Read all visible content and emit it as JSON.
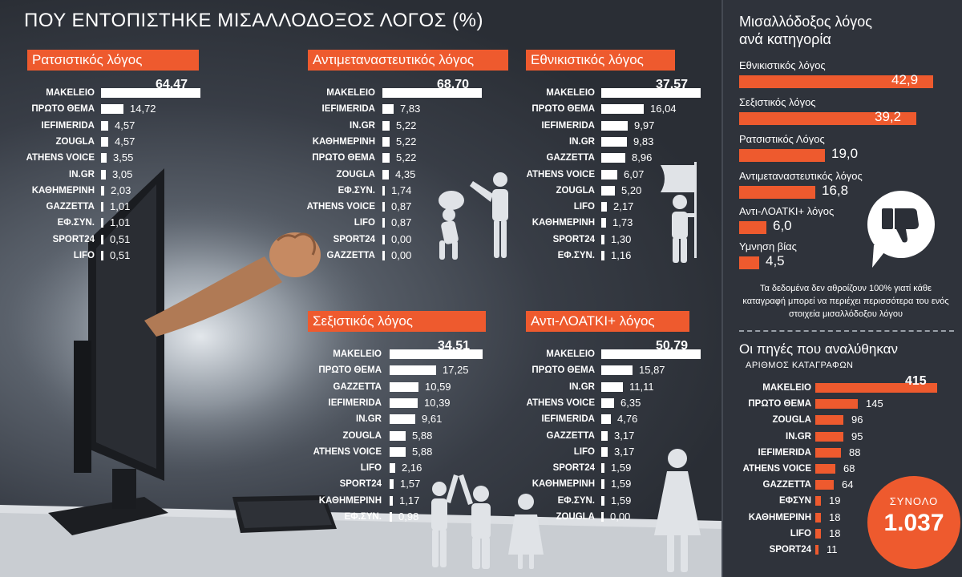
{
  "title": "ΠΟΥ ΕΝΤΟΠΙΣΤΗΚΕ ΜΙΣΑΛΛΟΔΟΞΟΣ ΛΟΓΟΣ (%)",
  "colors": {
    "accent": "#ee5a2e",
    "background": "#2b2f37",
    "bar_white": "#ffffff",
    "text": "#ffffff"
  },
  "right_panel": {
    "title_line1": "Μισαλλόδοξος λόγος",
    "title_line2": "ανά κατηγορία",
    "note": "Τα δεδομένα δεν αθροίζουν 100% γιατί κάθε καταγραφή μπορεί να περιέχει περισσότερα του ενός στοιχεία μισαλλόδοξου λόγου",
    "sources_title": "Οι πηγές που αναλύθηκαν",
    "sources_subtitle": "ΑΡΙΘΜΟΣ ΚΑΤΑΓΡΑΦΩΝ",
    "total_label": "ΣΥΝΟΛΟ",
    "total_value": "1.037",
    "icons": [
      "thumbs-down-icon"
    ]
  },
  "decorative_icons": [
    "monitor-with-fist-illustration",
    "man-pushing-carrier-icon",
    "man-with-flag-icon",
    "three-people-icon",
    "woman-icon"
  ],
  "chart_data": [
    {
      "type": "bar",
      "title": "Ρατσιστικός λόγος",
      "unit": "%",
      "categories": [
        "ΜΑΚΕLΕΙΟ",
        "ΠΡΩΤΟ ΘΕΜΑ",
        "IEFIMERIDA",
        "ZOUGLA",
        "ATHENS VOICE",
        "IN.GR",
        "ΚΑΘΗΜΕΡΙΝΗ",
        "GAZZETTA",
        "ΕΦ.ΣΥΝ.",
        "SPORT24",
        "LIFO"
      ],
      "values": [
        64.47,
        14.72,
        4.57,
        4.57,
        3.55,
        3.05,
        2.03,
        1.01,
        1.01,
        0.51,
        0.51
      ],
      "value_labels": [
        "64,47",
        "14,72",
        "4,57",
        "4,57",
        "3,55",
        "3,05",
        "2,03",
        "1,01",
        "1,01",
        "0,51",
        "0,51"
      ]
    },
    {
      "type": "bar",
      "title": "Αντιμεταναστευτικός λόγος",
      "unit": "%",
      "categories": [
        "ΜΑΚΕLΕΙΟ",
        "IEFIMERIDA",
        "IN.GR",
        "ΚΑΘΗΜΕΡΙΝΗ",
        "ΠΡΩΤΟ ΘΕΜΑ",
        "ZOUGLA",
        "ΕΦ.ΣΥΝ.",
        "ATHENS VOICE",
        "LIFO",
        "SPORT24",
        "GAZZETTA"
      ],
      "values": [
        68.7,
        7.83,
        5.22,
        5.22,
        5.22,
        4.35,
        1.74,
        0.87,
        0.87,
        0.0,
        0.0
      ],
      "value_labels": [
        "68,70",
        "7,83",
        "5,22",
        "5,22",
        "5,22",
        "4,35",
        "1,74",
        "0,87",
        "0,87",
        "0,00",
        "0,00"
      ]
    },
    {
      "type": "bar",
      "title": "Εθνικιστικός λόγος",
      "unit": "%",
      "categories": [
        "ΜΑΚΕLΕΙΟ",
        "ΠΡΩΤΟ ΘΕΜΑ",
        "IEFIMERIDA",
        "IN.GR",
        "GAZZETTA",
        "ATHENS VOICE",
        "ZOUGLA",
        "LIFO",
        "ΚΑΘΗΜΕΡΙΝΗ",
        "SPORT24",
        "ΕΦ.ΣΥΝ."
      ],
      "values": [
        37.57,
        16.04,
        9.97,
        9.83,
        8.96,
        6.07,
        5.2,
        2.17,
        1.73,
        1.3,
        1.16
      ],
      "value_labels": [
        "37,57",
        "16,04",
        "9,97",
        "9,83",
        "8,96",
        "6,07",
        "5,20",
        "2,17",
        "1,73",
        "1,30",
        "1,16"
      ]
    },
    {
      "type": "bar",
      "title": "Σεξιστικός λόγος",
      "unit": "%",
      "categories": [
        "ΜΑΚΕLΕΙΟ",
        "ΠΡΩΤΟ ΘΕΜΑ",
        "GAZZETTA",
        "IEFIMERIDA",
        "IN.GR",
        "ZOUGLA",
        "ATHENS VOICE",
        "LIFO",
        "SPORT24",
        "ΚΑΘΗΜΕΡΙΝΗ",
        "ΕΦ.ΣΥΝ."
      ],
      "values": [
        34.51,
        17.25,
        10.59,
        10.39,
        9.61,
        5.88,
        5.88,
        2.16,
        1.57,
        1.17,
        0.98
      ],
      "value_labels": [
        "34,51",
        "17,25",
        "10,59",
        "10,39",
        "9,61",
        "5,88",
        "5,88",
        "2,16",
        "1,57",
        "1,17",
        "0,98"
      ]
    },
    {
      "type": "bar",
      "title": "Αντι-ΛΟΑΤΚΙ+ λόγος",
      "unit": "%",
      "categories": [
        "ΜΑΚΕLΕΙΟ",
        "ΠΡΩΤΟ ΘΕΜΑ",
        "IN.GR",
        "ATHENS VOICE",
        "IEFIMERIDA",
        "GAZZETTA",
        "LIFO",
        "SPORT24",
        "ΚΑΘΗΜΕΡΙΝΗ",
        "ΕΦ.ΣΥΝ.",
        "ZOUGLA"
      ],
      "values": [
        50.79,
        15.87,
        11.11,
        6.35,
        4.76,
        3.17,
        3.17,
        1.59,
        1.59,
        1.59,
        0.0
      ],
      "value_labels": [
        "50,79",
        "15,87",
        "11,11",
        "6,35",
        "4,76",
        "3,17",
        "3,17",
        "1,59",
        "1,59",
        "1,59",
        "0,00"
      ]
    },
    {
      "type": "bar",
      "title": "Μισαλλόδοξος λόγος ανά κατηγορία",
      "categories": [
        "Εθνικιστικός λόγος",
        "Σεξιστικός λόγος",
        "Ρατσιστικός Λόγος",
        "Αντιμεταναστευτικός λόγος",
        "Αντι-ΛΟΑΤΚΙ+ λόγος",
        "Υμνηση βίας"
      ],
      "values": [
        42.9,
        39.2,
        19.0,
        16.8,
        6.0,
        4.5
      ],
      "value_labels": [
        "42,9",
        "39,2",
        "19,0",
        "16,8",
        "6,0",
        "4,5"
      ]
    },
    {
      "type": "bar",
      "title": "Οι πηγές που αναλύθηκαν",
      "ylabel": "ΑΡΙΘΜΟΣ ΚΑΤΑΓΡΑΦΩΝ",
      "categories": [
        "ΜΑΚΕLΕΙΟ",
        "ΠΡΩΤΟ ΘΕΜΑ",
        "ZOUGLA",
        "IN.GR",
        "IEFIMERIDA",
        "ATHENS VOICE",
        "GAZZETTA",
        "ΕΦΣΥΝ",
        "ΚΑΘΗΜΕΡΙΝΗ",
        "LIFO",
        "SPORT24"
      ],
      "values": [
        415,
        145,
        96,
        95,
        88,
        68,
        64,
        19,
        18,
        18,
        11
      ],
      "value_labels": [
        "415",
        "145",
        "96",
        "95",
        "88",
        "68",
        "64",
        "19",
        "18",
        "18",
        "11"
      ]
    }
  ]
}
